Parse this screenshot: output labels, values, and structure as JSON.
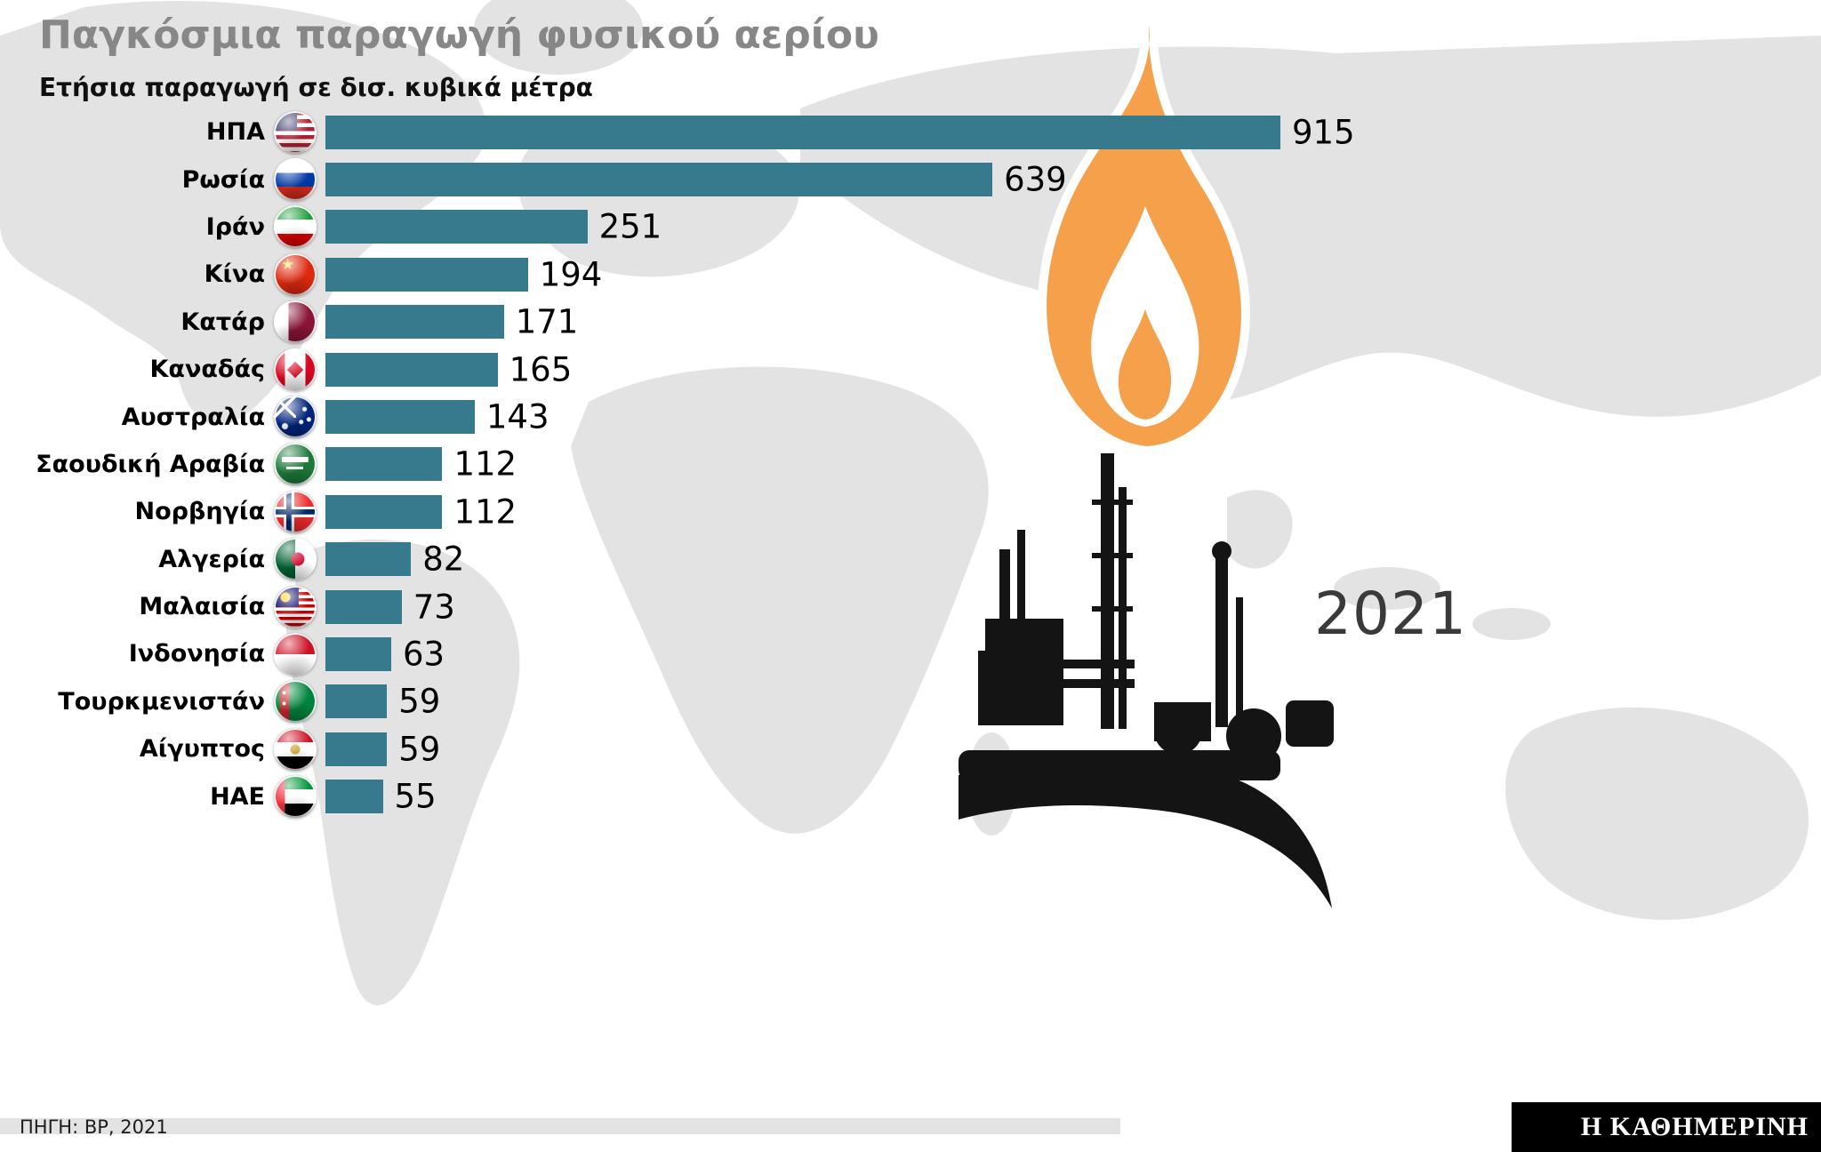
{
  "title": "Παγκόσμια παραγωγή φυσικού αερίου",
  "subtitle": "Ετήσια παραγωγή σε δισ. κυβικά μέτρα",
  "year_label": "2021",
  "source": "ΠΗΓΗ: BP, 2021",
  "publisher": "Η ΚΑΘΗΜΕΡΙΝΗ",
  "colors": {
    "bar": "#37798D",
    "flame_orange": "#F5A14B",
    "silhouette_black": "#141414",
    "title_gray": "#878787",
    "map_gray": "#E3E3E3"
  },
  "chart_data": {
    "type": "bar",
    "orientation": "horizontal",
    "title": "Παγκόσμια παραγωγή φυσικού αερίου",
    "subtitle": "Ετήσια παραγωγή σε δισ. κυβικά μέτρα",
    "unit": "δισ. κυβικά μέτρα",
    "year": 2021,
    "xlim": [
      0,
      915
    ],
    "grid": false,
    "legend": false,
    "bar_color": "#37798D",
    "categories": [
      "ΗΠΑ",
      "Ρωσία",
      "Ιράν",
      "Κίνα",
      "Κατάρ",
      "Καναδάς",
      "Αυστραλία",
      "Σαουδική Αραβία",
      "Νορβηγία",
      "Αλγερία",
      "Μαλαισία",
      "Ινδονησία",
      "Τουρκμενιστάν",
      "Αίγυπτος",
      "ΗΑΕ"
    ],
    "values": [
      915,
      639,
      251,
      194,
      171,
      165,
      143,
      112,
      112,
      82,
      73,
      63,
      59,
      59,
      55
    ],
    "flags": [
      "usa",
      "russia",
      "iran",
      "china",
      "qatar",
      "canada",
      "australia",
      "saudi-arabia",
      "norway",
      "algeria",
      "malaysia",
      "indonesia",
      "turkmenistan",
      "egypt",
      "uae"
    ]
  }
}
